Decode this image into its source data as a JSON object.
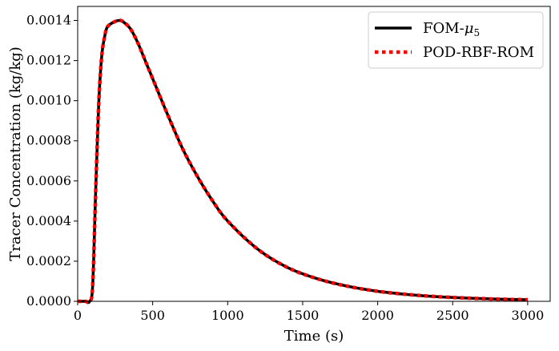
{
  "chart_data": {
    "type": "line",
    "title": "",
    "xlabel": "Time (s)",
    "ylabel": "Tracer Concentration (kg/kg)",
    "xlim": [
      0,
      3150
    ],
    "ylim": [
      0,
      0.00147
    ],
    "x_ticks": [
      0,
      500,
      1000,
      1500,
      2000,
      2500,
      3000
    ],
    "x_tick_labels": [
      "0",
      "500",
      "1000",
      "1500",
      "2000",
      "2500",
      "3000"
    ],
    "y_ticks": [
      0,
      0.0002,
      0.0004,
      0.0006,
      0.0008,
      0.001,
      0.0012,
      0.0014
    ],
    "y_tick_labels": [
      "0.0000",
      "0.0002",
      "0.0004",
      "0.0006",
      "0.0008",
      "0.0010",
      "0.0012",
      "0.0014"
    ],
    "grid": false,
    "legend_position": "top-right",
    "x": [
      0,
      50,
      80,
      100,
      120,
      140,
      160,
      180,
      200,
      250,
      280,
      300,
      350,
      400,
      450,
      500,
      600,
      700,
      800,
      900,
      1000,
      1200,
      1400,
      1600,
      1800,
      2000,
      2200,
      2400,
      2600,
      2800,
      3000
    ],
    "series": [
      {
        "name": "FOM-μ5",
        "name_base": "FOM-",
        "name_symbol": "μ",
        "name_subscript": "5",
        "color": "#000000",
        "style": "solid",
        "values": [
          0,
          0,
          0,
          8e-05,
          0.00055,
          0.00098,
          0.00122,
          0.00132,
          0.00137,
          0.001395,
          0.0014,
          0.001395,
          0.00136,
          0.00129,
          0.0012,
          0.00111,
          0.00093,
          0.00076,
          0.00062,
          0.0005,
          0.0004,
          0.00026,
          0.000168,
          0.000112,
          7.5e-05,
          5e-05,
          3.4e-05,
          2.3e-05,
          1.6e-05,
          1.1e-05,
          8e-06
        ]
      },
      {
        "name": "POD-RBF-ROM",
        "color": "#ff0000",
        "style": "dotted",
        "values": [
          0,
          0,
          0,
          8e-05,
          0.00055,
          0.00098,
          0.00122,
          0.00132,
          0.00137,
          0.001395,
          0.0014,
          0.001395,
          0.00136,
          0.00129,
          0.0012,
          0.00111,
          0.00093,
          0.00076,
          0.00062,
          0.0005,
          0.0004,
          0.00026,
          0.000168,
          0.000112,
          7.5e-05,
          5e-05,
          3.4e-05,
          2.3e-05,
          1.6e-05,
          1.1e-05,
          8e-06
        ]
      }
    ]
  }
}
